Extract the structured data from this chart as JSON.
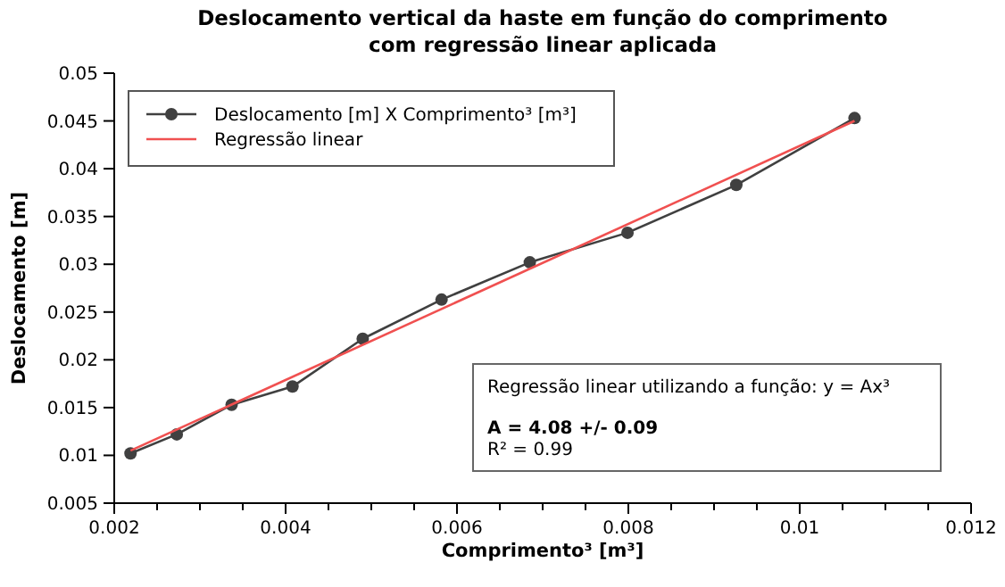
{
  "chart_data": {
    "type": "line",
    "title": "Deslocamento vertical da haste em função do comprimento\ncom regressão linear aplicada",
    "xlabel": "Comprimento³ [m³]",
    "ylabel": "Deslocamento [m]",
    "xlim": [
      0.002,
      0.012
    ],
    "xticks": [
      0.002,
      {
        "value": 0.0025,
        "label": null
      },
      {
        "value": 0.003,
        "label": null
      },
      {
        "value": 0.0035,
        "label": null
      },
      0.004,
      {
        "value": 0.0045,
        "label": null
      },
      {
        "value": 0.005,
        "label": null
      },
      {
        "value": 0.0055,
        "label": null
      },
      0.006,
      {
        "value": 0.0065,
        "label": null
      },
      {
        "value": 0.007,
        "label": null
      },
      {
        "value": 0.0075,
        "label": null
      },
      0.008,
      {
        "value": 0.0085,
        "label": null
      },
      {
        "value": 0.009,
        "label": null
      },
      {
        "value": 0.0095,
        "label": null
      },
      0.01,
      {
        "value": 0.0105,
        "label": null
      },
      {
        "value": 0.011,
        "label": null
      },
      {
        "value": 0.0115,
        "label": null
      },
      0.012
    ],
    "ylim": [
      0.005,
      0.05
    ],
    "yticks": [
      0.005,
      0.01,
      0.015,
      0.02,
      0.025,
      0.03,
      0.035,
      0.04,
      0.045,
      0.05
    ],
    "grid": false,
    "legend": "top left",
    "line_style": "solid",
    "series": [
      {
        "name": "Deslocamento [m] X Comprimento³ [m³]",
        "color": "#404040",
        "marker": "circle",
        "x": [
          0.00219,
          0.00273,
          0.00337,
          0.00408,
          0.0049,
          0.00582,
          0.00685,
          0.00799,
          0.00926,
          0.01064
        ],
        "values": [
          0.0102,
          0.0122,
          0.0153,
          0.0172,
          0.0222,
          0.0263,
          0.0302,
          0.0333,
          0.0383,
          0.0453
        ]
      },
      {
        "name": "Regressão linear",
        "color": "#f05050",
        "marker": "none",
        "x": [
          0.00219,
          0.01064
        ],
        "values": [
          0.0105,
          0.045
        ]
      }
    ],
    "annotations": [
      "Regressão linear utilizando a função: y = Ax³",
      "A = 4.08 +/- 0.09",
      "R² = 0.99"
    ]
  }
}
